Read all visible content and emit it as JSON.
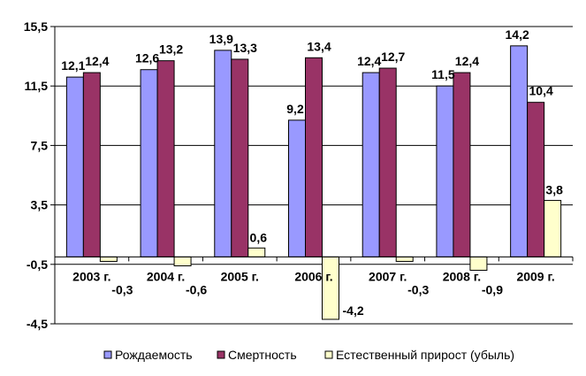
{
  "chart_data": {
    "type": "bar",
    "categories": [
      "2003 г.",
      "2004 г.",
      "2005 г.",
      "2006 г.",
      "2007 г.",
      "2008 г.",
      "2009 г."
    ],
    "series": [
      {
        "name": "Рождаемость",
        "color": "#9999ff",
        "values": [
          12.1,
          12.6,
          13.9,
          9.2,
          12.4,
          11.5,
          14.2
        ],
        "labels": [
          "12,1",
          "12,6",
          "13,9",
          "9,2",
          "12,4",
          "11,5",
          "14,2"
        ]
      },
      {
        "name": "Смертность",
        "color": "#993366",
        "values": [
          12.4,
          13.2,
          13.3,
          13.4,
          12.7,
          12.4,
          10.4
        ],
        "labels": [
          "12,4",
          "13,2",
          "13,3",
          "13,4",
          "12,7",
          "12,4",
          "10,4"
        ]
      },
      {
        "name": "Естественный прирост (убыль)",
        "color": "#ffffcc",
        "values": [
          -0.3,
          -0.6,
          0.6,
          -4.2,
          -0.3,
          -0.9,
          3.8
        ],
        "labels": [
          "-0,3",
          "-0,6",
          "0,6",
          "-4,2",
          "-0,3",
          "-0,9",
          "3,8"
        ]
      }
    ],
    "ylim": [
      -4.5,
      15.5
    ],
    "yticks": [
      -4.5,
      -0.5,
      3.5,
      7.5,
      11.5,
      15.5
    ],
    "ytick_labels": [
      "-4,5",
      "-0,5",
      "3,5",
      "7,5",
      "11,5",
      "15,5"
    ],
    "grid": true,
    "legend_position": "bottom"
  }
}
